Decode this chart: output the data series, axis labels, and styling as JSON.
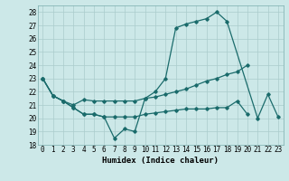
{
  "xlabel": "Humidex (Indice chaleur)",
  "bg_color": "#cce8e8",
  "grid_color": "#aacccc",
  "line_color": "#1a6b6b",
  "xlim": [
    -0.5,
    23.5
  ],
  "ylim": [
    18,
    28.5
  ],
  "yticks": [
    18,
    19,
    20,
    21,
    22,
    23,
    24,
    25,
    26,
    27,
    28
  ],
  "xticks": [
    0,
    1,
    2,
    3,
    4,
    5,
    6,
    7,
    8,
    9,
    10,
    11,
    12,
    13,
    14,
    15,
    16,
    17,
    18,
    19,
    20,
    21,
    22,
    23
  ],
  "line1_x": [
    0,
    1,
    2,
    3,
    4,
    5,
    6,
    7,
    8,
    9,
    10,
    11,
    12,
    13,
    14,
    15,
    16,
    17,
    18,
    21,
    22,
    23
  ],
  "line1_y": [
    23,
    21.7,
    21.3,
    20.8,
    20.3,
    20.3,
    20.1,
    18.5,
    19.2,
    19.0,
    21.5,
    22.0,
    23.0,
    26.8,
    27.1,
    27.3,
    27.5,
    28.0,
    27.3,
    20.0,
    21.8,
    20.1
  ],
  "line2_x": [
    0,
    1,
    2,
    3,
    4,
    5,
    6,
    7,
    8,
    9,
    10,
    11,
    12,
    13,
    14,
    15,
    16,
    17,
    18,
    19,
    20
  ],
  "line2_y": [
    23,
    21.7,
    21.3,
    20.8,
    20.3,
    20.3,
    20.1,
    20.1,
    20.1,
    20.1,
    20.3,
    20.4,
    20.5,
    20.6,
    20.7,
    20.7,
    20.7,
    20.8,
    20.8,
    21.3,
    20.3
  ],
  "line3_x": [
    0,
    1,
    2,
    3,
    4,
    5,
    6,
    7,
    8,
    9,
    10,
    11,
    12,
    13,
    14,
    15,
    16,
    17,
    18,
    19,
    20
  ],
  "line3_y": [
    23,
    21.7,
    21.3,
    21.0,
    21.4,
    21.3,
    21.3,
    21.3,
    21.3,
    21.3,
    21.5,
    21.6,
    21.8,
    22.0,
    22.2,
    22.5,
    22.8,
    23.0,
    23.3,
    23.5,
    24.0
  ],
  "xlabel_fontsize": 6.5,
  "tick_fontsize": 5.5
}
